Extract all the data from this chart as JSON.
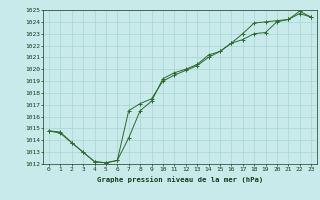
{
  "xlabel": "Graphe pression niveau de la mer (hPa)",
  "x": [
    0,
    1,
    2,
    3,
    4,
    5,
    6,
    7,
    8,
    9,
    10,
    11,
    12,
    13,
    14,
    15,
    16,
    17,
    18,
    19,
    20,
    21,
    22,
    23
  ],
  "line1": [
    1014.8,
    1014.7,
    1013.8,
    1013.0,
    1012.2,
    1012.1,
    1012.3,
    1014.2,
    1016.5,
    1017.3,
    1019.2,
    1019.7,
    1020.0,
    1020.4,
    1021.2,
    1021.5,
    1022.2,
    1023.0,
    1023.9,
    1024.0,
    1024.1,
    1024.2,
    1024.9,
    1024.4
  ],
  "line2": [
    1014.8,
    1014.6,
    1013.8,
    1013.0,
    1012.2,
    1012.1,
    1012.3,
    1016.5,
    1017.1,
    1017.5,
    1019.0,
    1019.5,
    1019.9,
    1020.3,
    1021.0,
    1021.5,
    1022.2,
    1022.5,
    1023.0,
    1023.1,
    1024.0,
    1024.2,
    1024.7,
    1024.4
  ],
  "line_color": "#2d6a2d",
  "bg_color": "#c8eaea",
  "grid_color": "#aad4d4",
  "text_color": "#1a3a1a",
  "ylim": [
    1012,
    1025
  ],
  "yticks": [
    1012,
    1013,
    1014,
    1015,
    1016,
    1017,
    1018,
    1019,
    1020,
    1021,
    1022,
    1023,
    1024,
    1025
  ],
  "xticks": [
    0,
    1,
    2,
    3,
    4,
    5,
    6,
    7,
    8,
    9,
    10,
    11,
    12,
    13,
    14,
    15,
    16,
    17,
    18,
    19,
    20,
    21,
    22,
    23
  ],
  "figwidth": 3.2,
  "figheight": 2.0,
  "dpi": 100
}
